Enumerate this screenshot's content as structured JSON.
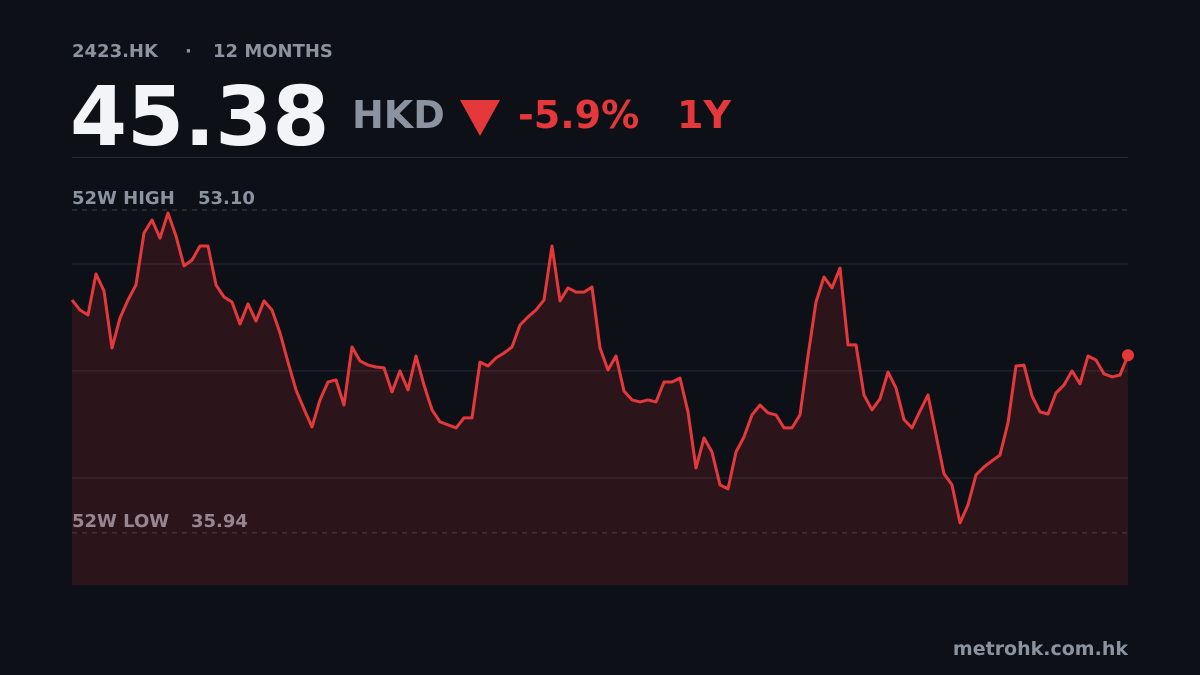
{
  "chart_data": {
    "type": "line",
    "ticker": "2423.HK",
    "separator": "·",
    "period": "12 MONTHS",
    "price": 45.38,
    "currency": "HKD",
    "change": {
      "value": -5.9,
      "label": "-5.9%"
    },
    "range": "1Y",
    "high_label": "52W HIGH",
    "high": {
      "value": 53.1,
      "label": "53.10"
    },
    "low_label": "52W LOW",
    "low": 35.94,
    "color": "#e5383b",
    "ylim": [
      33.17,
      55.92
    ],
    "grid_values": [
      38.86,
      44.55,
      50.23
    ],
    "values": [
      48.32,
      47.79,
      47.52,
      49.7,
      48.8,
      45.77,
      47.36,
      48.32,
      49.12,
      51.88,
      52.57,
      51.61,
      52.94,
      51.72,
      50.13,
      50.44,
      51.19,
      51.19,
      49.12,
      48.48,
      48.21,
      47.04,
      48.11,
      47.2,
      48.27,
      47.79,
      46.57,
      45.02,
      43.54,
      42.53,
      41.57,
      43.01,
      43.96,
      44.07,
      42.74,
      45.82,
      45.08,
      44.86,
      44.76,
      44.71,
      43.43,
      44.55,
      43.54,
      45.34,
      43.8,
      42.48,
      41.84,
      41.68,
      41.52,
      42.05,
      42.05,
      45.02,
      44.81,
      45.24,
      45.5,
      45.82,
      46.99,
      47.42,
      47.79,
      48.32,
      51.19,
      48.27,
      48.96,
      48.74,
      48.74,
      49.01,
      45.77,
      44.6,
      45.34,
      43.48,
      43.01,
      42.9,
      43.01,
      42.9,
      43.96,
      43.96,
      44.17,
      42.37,
      39.39,
      40.99,
      40.24,
      38.49,
      38.28,
      40.24,
      41.04,
      42.21,
      42.74,
      42.32,
      42.21,
      41.52,
      41.52,
      42.21,
      45.34,
      48.21,
      49.54,
      48.96,
      50.02,
      45.93,
      45.93,
      43.27,
      42.48,
      43.06,
      44.49,
      43.64,
      41.96,
      41.52,
      42.42,
      43.27,
      41.15,
      39.08,
      38.49,
      36.47,
      37.43,
      39.02,
      39.45,
      39.77,
      40.08,
      41.79,
      44.81,
      44.86,
      43.22,
      42.37,
      42.26,
      43.38,
      43.8,
      44.55,
      43.86,
      45.34,
      45.13,
      44.39,
      44.23,
      44.33,
      45.38
    ],
    "source": "metrohk.com.hk"
  }
}
